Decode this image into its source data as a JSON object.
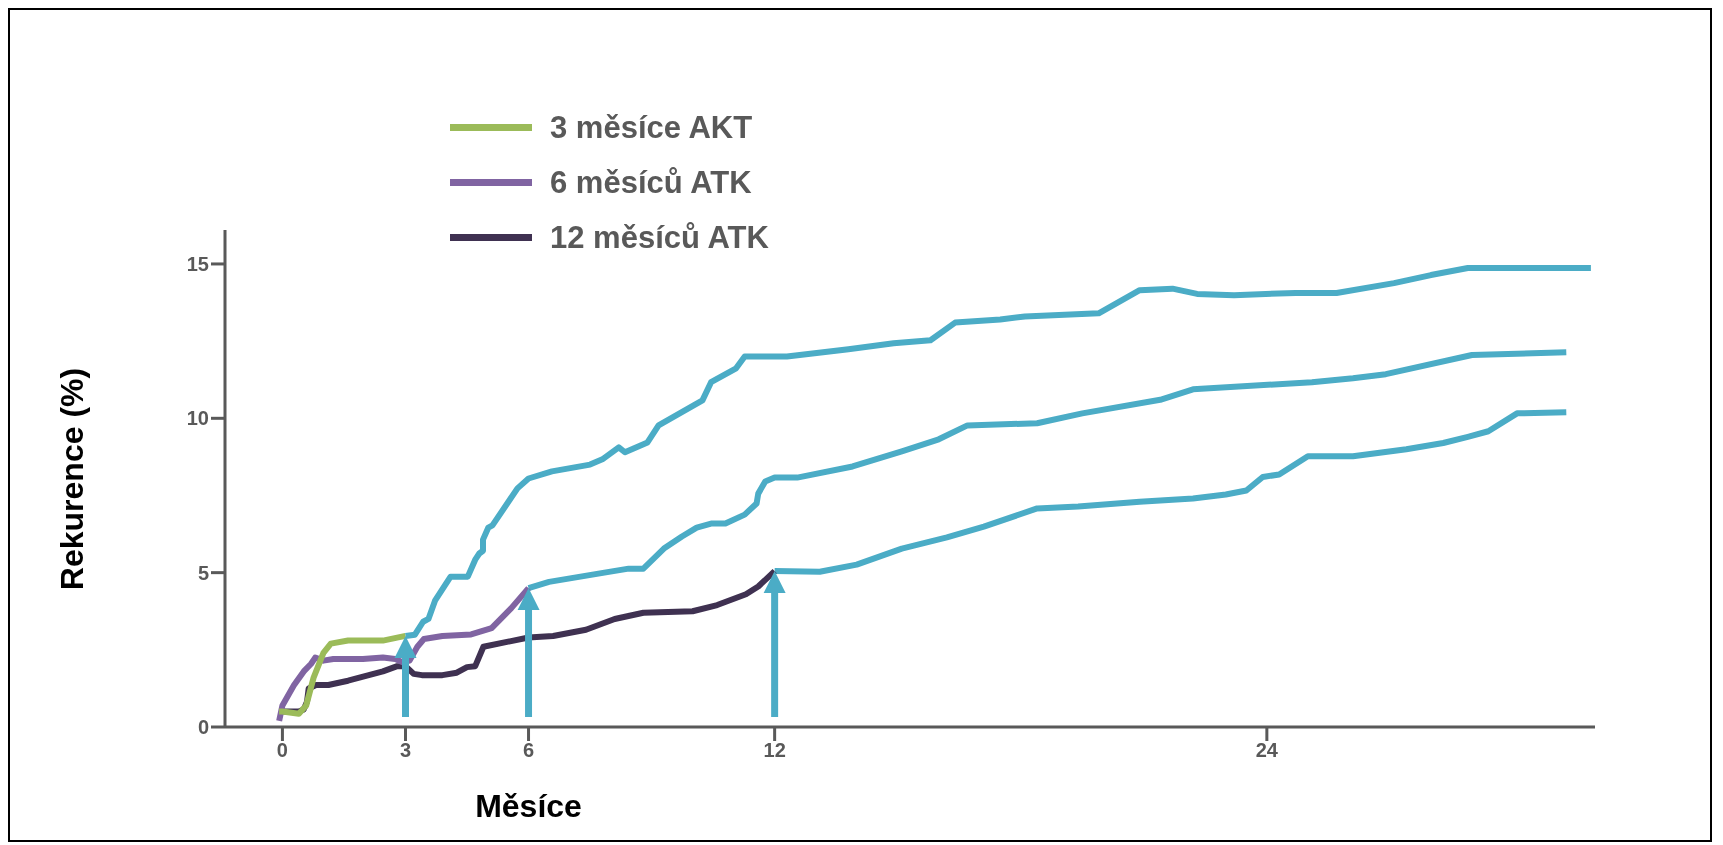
{
  "chart_data": {
    "type": "line",
    "xlabel": "Měsíce",
    "ylabel": "Rekurence (%)",
    "xlim": [
      -1.4,
      32
    ],
    "xticks": [
      0,
      3,
      6,
      12,
      24
    ],
    "ylim": [
      0,
      16.1
    ],
    "yticks": [
      0,
      5,
      10,
      15
    ],
    "legend": "top",
    "line_style": "solid",
    "series": [
      {
        "color": "#4bacc6",
        "x": [
          3.0,
          3.23,
          3.43,
          3.56,
          3.72,
          4.1,
          4.52,
          4.7,
          4.8,
          4.89,
          4.89,
          5.02,
          5.12,
          5.73,
          6.0,
          6.57,
          7.5,
          7.8,
          8.2,
          8.35,
          8.9,
          9.17,
          10.24,
          10.45,
          11.06,
          11.27,
          12.3,
          13.8,
          14.9,
          15.8,
          16.4,
          17.5,
          18.1,
          19.9,
          20.9,
          21.7,
          22.3,
          23.2,
          24.7,
          25.7,
          27.1,
          28.0,
          28.9,
          31.9
        ],
        "values": [
          2.95,
          2.99,
          3.41,
          3.5,
          4.09,
          4.87,
          4.87,
          5.42,
          5.62,
          5.71,
          6.07,
          6.46,
          6.53,
          7.73,
          8.05,
          8.28,
          8.5,
          8.67,
          9.06,
          8.9,
          9.22,
          9.77,
          10.58,
          11.17,
          11.62,
          12.0,
          12.0,
          12.24,
          12.43,
          12.53,
          13.1,
          13.2,
          13.3,
          13.4,
          14.15,
          14.2,
          14.03,
          13.99,
          14.06,
          14.06,
          14.38,
          14.64,
          14.87,
          14.87
        ]
      },
      {
        "color": "#4bacc6",
        "x": [
          6.0,
          6.5,
          7.85,
          8.44,
          8.8,
          9.3,
          9.74,
          10.1,
          10.45,
          10.8,
          11.27,
          11.56,
          11.6,
          11.77,
          12.0,
          12.55,
          13.9,
          15.1,
          16.0,
          16.7,
          18.4,
          19.5,
          21.4,
          22.2,
          25.1,
          26.1,
          26.9,
          29.0,
          31.3
        ],
        "values": [
          4.5,
          4.7,
          5.0,
          5.13,
          5.13,
          5.78,
          6.17,
          6.46,
          6.59,
          6.59,
          6.88,
          7.24,
          7.56,
          7.95,
          8.08,
          8.08,
          8.44,
          8.93,
          9.32,
          9.77,
          9.84,
          10.16,
          10.6,
          10.94,
          11.17,
          11.3,
          11.43,
          12.05,
          12.14
        ]
      },
      {
        "color": "#4bacc6",
        "x": [
          12.0,
          13.1,
          14.0,
          15.1,
          16.2,
          17.1,
          18.4,
          19.4,
          20.9,
          22.2,
          23.0,
          23.5,
          23.9,
          24.3,
          25.0,
          26.1,
          27.4,
          28.3,
          28.9,
          29.4,
          30.1,
          31.3
        ],
        "values": [
          5.05,
          5.03,
          5.26,
          5.78,
          6.14,
          6.49,
          7.08,
          7.14,
          7.3,
          7.4,
          7.53,
          7.66,
          8.1,
          8.18,
          8.77,
          8.77,
          9.0,
          9.2,
          9.4,
          9.58,
          10.16,
          10.2
        ]
      },
      {
        "name": "12 měsíců ATK",
        "color": "#3f3151",
        "x": [
          -0.08,
          0.4,
          0.52,
          0.6,
          0.64,
          0.82,
          1.12,
          1.6,
          2.45,
          2.8,
          3.0,
          3.2,
          3.4,
          3.9,
          4.25,
          4.5,
          4.7,
          4.9,
          6.0,
          6.6,
          7.4,
          8.1,
          8.8,
          10.0,
          10.6,
          11.3,
          11.6,
          12.0
        ],
        "values": [
          0.5,
          0.5,
          0.57,
          0.82,
          1.25,
          1.36,
          1.36,
          1.5,
          1.8,
          1.97,
          1.97,
          1.72,
          1.68,
          1.68,
          1.76,
          1.94,
          1.97,
          2.6,
          2.9,
          2.95,
          3.15,
          3.5,
          3.7,
          3.75,
          3.95,
          4.3,
          4.55,
          5.05
        ]
      },
      {
        "name": "6 měsíců ATK",
        "color": "#8064a2",
        "x": [
          -0.08,
          0.0,
          0.28,
          0.52,
          0.7,
          0.8,
          1.0,
          1.24,
          1.96,
          2.45,
          2.75,
          2.93,
          3.1,
          3.29,
          3.45,
          3.9,
          4.6,
          5.1,
          5.58,
          6.0
        ],
        "values": [
          0.2,
          0.7,
          1.35,
          1.8,
          2.05,
          2.25,
          2.15,
          2.2,
          2.2,
          2.25,
          2.2,
          2.1,
          2.15,
          2.6,
          2.85,
          2.95,
          3.0,
          3.2,
          3.85,
          4.5
        ]
      },
      {
        "name": "3 měsíce AKT",
        "color": "#9bbb59",
        "x": [
          -0.08,
          0.0,
          0.4,
          0.58,
          0.76,
          1.0,
          1.18,
          1.6,
          2.45,
          3.0
        ],
        "values": [
          0.5,
          0.5,
          0.43,
          0.7,
          1.6,
          2.4,
          2.7,
          2.8,
          2.8,
          2.95
        ]
      }
    ]
  }
}
